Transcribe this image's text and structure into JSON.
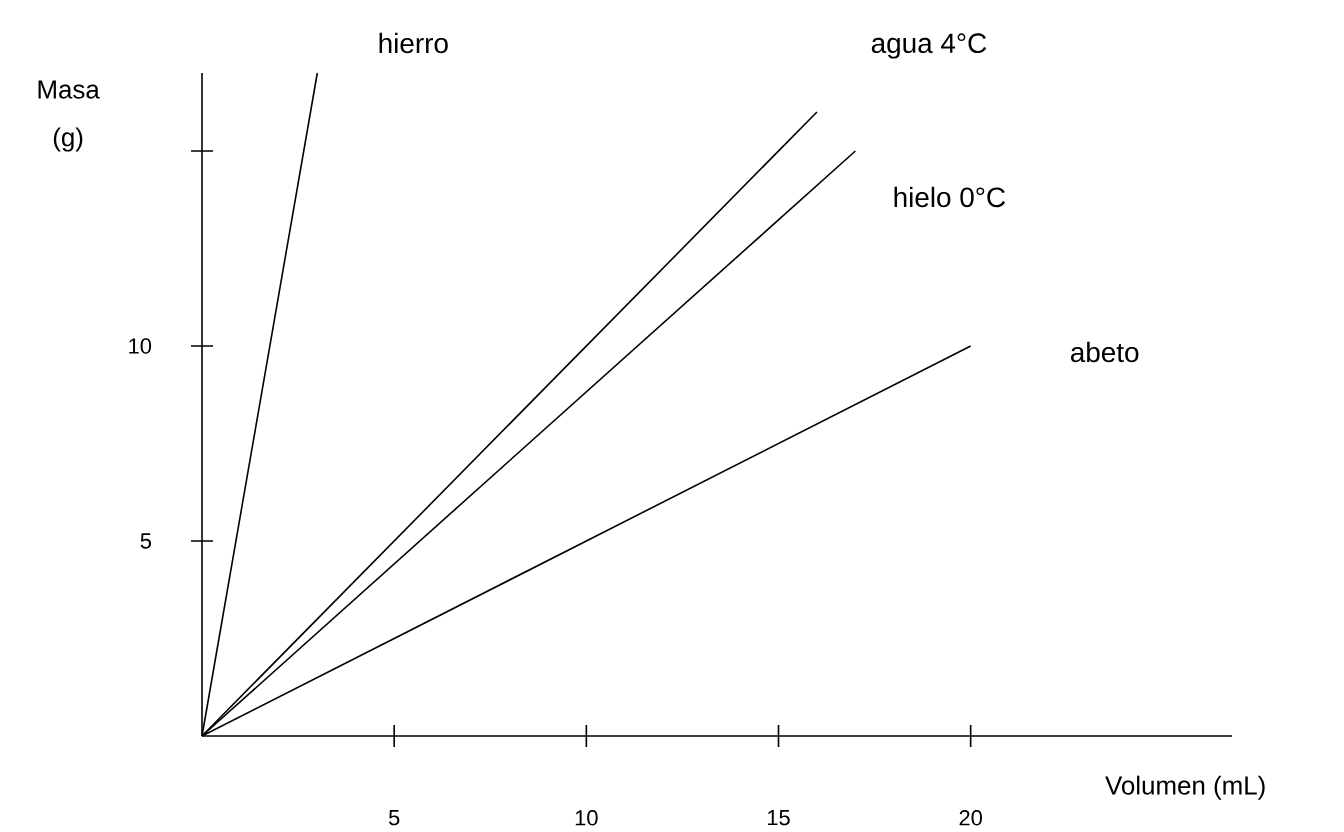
{
  "chart_data": {
    "type": "line",
    "xlabel": "Volumen (mL)",
    "ylabel": "Masa (g)",
    "xlim": [
      0,
      26.8
    ],
    "ylim": [
      0,
      17
    ],
    "xticks": [
      5,
      10,
      15,
      20
    ],
    "yticks": [
      5,
      10,
      {
        "value": 15,
        "label": null
      }
    ],
    "grid": false,
    "legend": false,
    "marker": "none",
    "line_style": "solid",
    "series": [
      {
        "name": "hierro",
        "color": "#000000",
        "x": [
          0,
          3.0
        ],
        "values": [
          0,
          17.0
        ]
      },
      {
        "name": "agua 4°C",
        "color": "#000000",
        "x": [
          0,
          16.0
        ],
        "values": [
          0,
          16.0
        ]
      },
      {
        "name": "hielo 0°C",
        "color": "#000000",
        "x": [
          0,
          17.0
        ],
        "values": [
          0,
          15.0
        ]
      },
      {
        "name": "abeto",
        "color": "#000000",
        "x": [
          0,
          20.0
        ],
        "values": [
          0,
          10.0
        ]
      }
    ]
  }
}
